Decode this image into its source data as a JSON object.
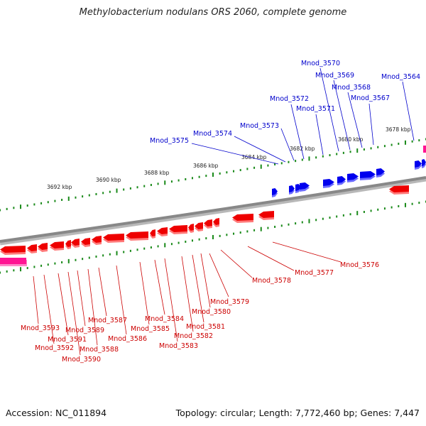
{
  "title": "Methylobacterium nodulans ORS 2060, complete genome",
  "footer": {
    "accession": "Accession: NC_011894",
    "summary": "Topology: circular; Length: 7,772,460 bp; Genes: 7,447"
  },
  "colors": {
    "forward_gene": "#0000ee",
    "reverse_gene": "#ee0000",
    "rna_gene": "#ff1493",
    "tick": "#1a8a1a",
    "backbone": "#888888",
    "forward_label": "#0000cc",
    "reverse_label": "#cc0000"
  },
  "scale_labels": [
    "3692 kbp",
    "3690 kbp",
    "3688 kbp",
    "3686 kbp",
    "3684 kbp",
    "3682 kbp",
    "3680 kbp",
    "3678 kbp"
  ],
  "forward_labels": [
    "Mnod_3575",
    "Mnod_3574",
    "Mnod_3573",
    "Mnod_3572",
    "Mnod_3571",
    "Mnod_3570",
    "Mnod_3569",
    "Mnod_3568",
    "Mnod_3567",
    "Mnod_3564"
  ],
  "reverse_labels": [
    "Mnod_3576",
    "Mnod_3577",
    "Mnod_3578",
    "Mnod_3579",
    "Mnod_3580",
    "Mnod_3581",
    "Mnod_3582",
    "Mnod_3583",
    "Mnod_3584",
    "Mnod_3585",
    "Mnod_3586",
    "Mnod_3587",
    "Mnod_3588",
    "Mnod_3589",
    "Mnod_3590",
    "Mnod_3591",
    "Mnod_3592",
    "Mnod_3593"
  ]
}
